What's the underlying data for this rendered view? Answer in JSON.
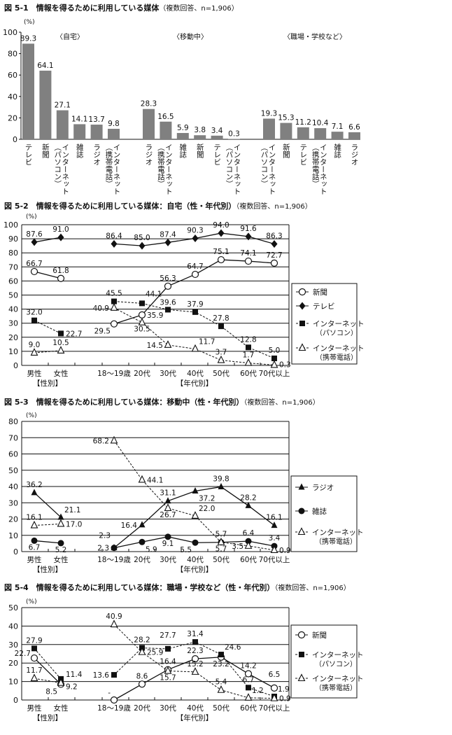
{
  "titles": [
    {
      "title": "図 5-1　情報を得るために利用している媒体",
      "note": "（複数回答、n=1,906）"
    },
    {
      "title": "図 5-2　情報を得るために利用している媒体：自宅（性・年代別）",
      "note": "（複数回答、n=1,906）"
    },
    {
      "title": "図 5-3　情報を得るために利用している媒体：移動中（性・年代別）",
      "note": "（複数回答、n=1,906）"
    },
    {
      "title": "図 5-4　情報を得るために利用している媒体：職場・学校など（性・年代別）",
      "note": "（複数回答、n=1,906）"
    }
  ],
  "chart_data": [
    {
      "type": "bar",
      "unit": "(%)",
      "ylim": [
        0,
        100
      ],
      "yticks": [
        0,
        20,
        40,
        60,
        80,
        100
      ],
      "bar_color": "#808080",
      "groups": [
        {
          "name": "〈自宅〉",
          "categories": [
            "テレビ",
            "新聞",
            "インターネット（パソコン）",
            "雑誌",
            "ラジオ",
            "インターネット（携帯電話）"
          ],
          "values": [
            89.3,
            64.1,
            27.1,
            14.1,
            13.7,
            9.8
          ]
        },
        {
          "name": "〈移動中〉",
          "categories": [
            "ラジオ",
            "インターネット（携帯電話）",
            "雑誌",
            "新聞",
            "テレビ",
            "インターネット（パソコン）"
          ],
          "values": [
            28.3,
            16.5,
            5.9,
            3.8,
            3.4,
            0.3
          ]
        },
        {
          "name": "〈職場・学校など〉",
          "categories": [
            "インターネット（パソコン）",
            "新聞",
            "テレビ",
            "インターネット（携帯電話）",
            "雑誌",
            "ラジオ"
          ],
          "values": [
            19.3,
            15.3,
            11.2,
            10.4,
            7.1,
            6.6
          ]
        }
      ]
    },
    {
      "type": "line",
      "unit": "(%)",
      "ylim": [
        0,
        100
      ],
      "yticks": [
        0,
        10,
        20,
        30,
        40,
        50,
        60,
        70,
        80,
        90,
        100
      ],
      "grid": true,
      "legend": "right",
      "categories": [
        "男性",
        "女性",
        "18〜19歳",
        "20代",
        "30代",
        "40代",
        "50代",
        "60代",
        "70代以上"
      ],
      "group_labels": [
        "【性別】",
        "【年代別】"
      ],
      "series": [
        {
          "name": "新聞",
          "marker": "circle-open",
          "dash": false,
          "values": [
            66.7,
            61.8,
            29.5,
            35.9,
            56.3,
            64.7,
            75.1,
            74.1,
            72.7
          ]
        },
        {
          "name": "テレビ",
          "marker": "diamond",
          "dash": false,
          "values": [
            87.6,
            91.0,
            86.4,
            85.0,
            87.4,
            90.3,
            94.0,
            91.6,
            86.3
          ]
        },
        {
          "name": "インターネット",
          "sub": "（パソコン）",
          "marker": "square",
          "dash": true,
          "values": [
            32.0,
            22.7,
            45.5,
            44.1,
            39.6,
            37.9,
            27.8,
            12.8,
            5.0
          ]
        },
        {
          "name": "インターネット",
          "sub": "（携帯電話）",
          "marker": "triangle-open",
          "dash": true,
          "values": [
            9.0,
            10.5,
            40.9,
            30.5,
            14.5,
            11.7,
            3.7,
            1.7,
            0.3
          ]
        }
      ]
    },
    {
      "type": "line",
      "unit": "(%)",
      "ylim": [
        0,
        80
      ],
      "yticks": [
        0,
        10,
        20,
        30,
        40,
        50,
        60,
        70,
        80
      ],
      "grid": true,
      "legend": "right",
      "categories": [
        "男性",
        "女性",
        "18〜19歳",
        "20代",
        "30代",
        "40代",
        "50代",
        "60代",
        "70代以上"
      ],
      "group_labels": [
        "【性別】",
        "【年代別】"
      ],
      "series": [
        {
          "name": "ラジオ",
          "marker": "triangle-filled",
          "dash": false,
          "values": [
            36.2,
            21.1,
            2.3,
            16.4,
            31.1,
            37.2,
            39.8,
            28.2,
            16.1
          ]
        },
        {
          "name": "雑誌",
          "marker": "circle-filled",
          "dash": false,
          "values": [
            6.7,
            5.2,
            2.3,
            5.9,
            9.1,
            5.5,
            5.7,
            6.4,
            3.4
          ]
        },
        {
          "name": "インターネット",
          "sub": "（携帯電話）",
          "marker": "triangle-open",
          "dash": true,
          "values": [
            16.1,
            17.0,
            68.2,
            44.1,
            26.7,
            22.0,
            5.7,
            3.5,
            0.9
          ]
        }
      ]
    },
    {
      "type": "line",
      "unit": "(%)",
      "ylim": [
        0,
        50
      ],
      "yticks": [
        0,
        10,
        20,
        30,
        40,
        50
      ],
      "grid": true,
      "legend": "right",
      "categories": [
        "男性",
        "女性",
        "18〜19歳",
        "20代",
        "30代",
        "40代",
        "50代",
        "60代",
        "70代以上"
      ],
      "group_labels": [
        "【性別】",
        "【年代別】"
      ],
      "series": [
        {
          "name": "新聞",
          "marker": "circle-open",
          "dash": false,
          "values": [
            22.7,
            8.5,
            "-",
            8.6,
            16.4,
            22.3,
            23.2,
            14.2,
            6.5
          ]
        },
        {
          "name": "インターネット",
          "sub": "（パソコン）",
          "marker": "square",
          "dash": true,
          "values": [
            27.9,
            11.4,
            13.6,
            28.2,
            27.7,
            31.4,
            24.6,
            6.7,
            1.9
          ]
        },
        {
          "name": "インターネット",
          "sub": "（携帯電話）",
          "marker": "triangle-open",
          "dash": true,
          "values": [
            11.7,
            9.2,
            40.9,
            25.9,
            15.7,
            15.2,
            5.4,
            1.2,
            0.9
          ]
        }
      ]
    }
  ]
}
